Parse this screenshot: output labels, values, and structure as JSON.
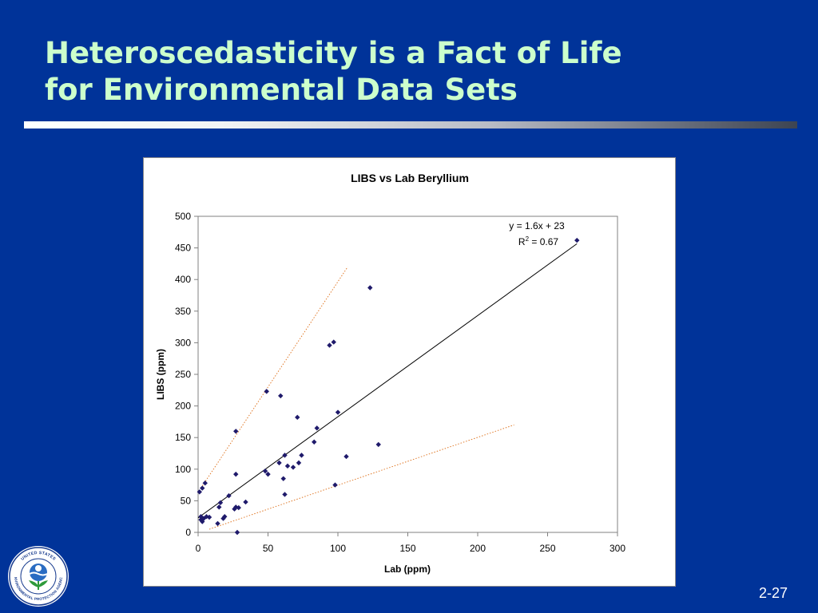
{
  "slide": {
    "title_line1": "Heteroscedasticity is a Fact of Life",
    "title_line2": "for Environmental Data Sets",
    "page_number": "2-27",
    "logo_text": "UNITED STATES ENVIRONMENTAL PROTECTION AGENCY",
    "colors": {
      "background": "#003399",
      "title": "#ccffcc",
      "marker": "#1f1a6b",
      "bound_lines": "#e07a2a"
    },
    "logo_icon": "epa-seal-icon"
  },
  "chart_data": {
    "type": "scatter",
    "title": "LIBS vs Lab Beryllium",
    "xlabel": "Lab (ppm)",
    "ylabel": "LIBS (ppm)",
    "xlim": [
      0,
      300
    ],
    "ylim": [
      0,
      500
    ],
    "xticks": [
      0,
      50,
      100,
      150,
      200,
      250,
      300
    ],
    "yticks": [
      0,
      50,
      100,
      150,
      200,
      250,
      300,
      350,
      400,
      450,
      500
    ],
    "grid": false,
    "legend": "none",
    "series": [
      {
        "x": [
          1,
          2,
          2,
          3,
          3,
          4,
          5,
          6,
          8,
          14,
          15,
          16,
          18,
          19,
          22,
          26,
          27,
          27,
          27,
          28,
          29,
          34,
          48,
          49,
          50,
          58,
          59,
          61,
          62,
          62,
          64,
          68,
          71,
          72,
          74,
          83,
          85,
          94,
          97,
          98,
          100,
          106,
          123,
          129,
          271
        ],
        "y": [
          64,
          20,
          25,
          17,
          70,
          22,
          78,
          25,
          24,
          14,
          40,
          47,
          22,
          25,
          58,
          37,
          40,
          160,
          92,
          0,
          39,
          48,
          97,
          223,
          92,
          110,
          216,
          85,
          122,
          60,
          105,
          103,
          182,
          110,
          122,
          143,
          165,
          296,
          301,
          75,
          190,
          120,
          387,
          139,
          462
        ]
      }
    ],
    "trendline": {
      "slope": 1.6,
      "intercept": 23,
      "x_range": [
        0,
        271
      ],
      "equation": "y = 1.6x + 23",
      "r2_prefix": "R",
      "r2_sup": "2",
      "r2_suffix": " = 0.67"
    },
    "bound_lines": [
      {
        "from": [
          2,
          70
        ],
        "to": [
          107,
          420
        ]
      },
      {
        "from": [
          8,
          5
        ],
        "to": [
          226,
          170
        ]
      }
    ]
  }
}
